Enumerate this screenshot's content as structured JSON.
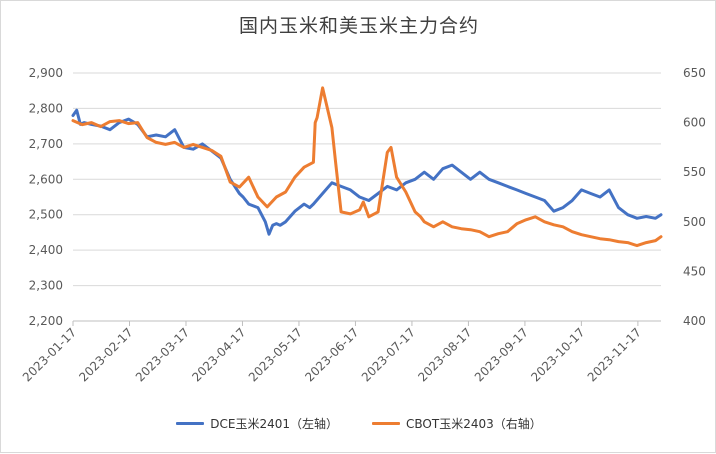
{
  "chart_data": {
    "type": "line",
    "title": "国内玉米和美玉米主力合约",
    "xlabel": "",
    "ylabel": "",
    "x_ticks": [
      "2023-01-17",
      "2023-02-17",
      "2023-03-17",
      "2023-04-17",
      "2023-05-17",
      "2023-06-17",
      "2023-07-17",
      "2023-08-17",
      "2023-09-17",
      "2023-10-17",
      "2023-11-17"
    ],
    "y_left": {
      "min": 2200,
      "max": 2900,
      "step": 100,
      "ticks": [
        "2,200",
        "2,300",
        "2,400",
        "2,500",
        "2,600",
        "2,700",
        "2,800",
        "2,900"
      ]
    },
    "y_right": {
      "min": 400,
      "max": 650,
      "step": 50,
      "ticks": [
        "400",
        "450",
        "500",
        "550",
        "600",
        "650"
      ]
    },
    "series": [
      {
        "name": "DCE玉米2401（左轴）",
        "axis": "left",
        "color": "#4472C4",
        "x_days": [
          0,
          2,
          4,
          6,
          10,
          15,
          20,
          25,
          30,
          35,
          40,
          45,
          50,
          55,
          60,
          65,
          70,
          75,
          80,
          85,
          90,
          92,
          95,
          100,
          104,
          106,
          108,
          110,
          112,
          115,
          120,
          125,
          128,
          130,
          135,
          140,
          145,
          150,
          155,
          160,
          165,
          170,
          175,
          180,
          185,
          190,
          195,
          200,
          205,
          210,
          215,
          220,
          225,
          230,
          235,
          240,
          245,
          250,
          255,
          260,
          265,
          270,
          275,
          280,
          285,
          290,
          295,
          300,
          305,
          310,
          315,
          318
        ],
        "values": [
          2780,
          2795,
          2755,
          2760,
          2755,
          2750,
          2740,
          2760,
          2770,
          2755,
          2720,
          2725,
          2720,
          2740,
          2690,
          2685,
          2700,
          2680,
          2660,
          2600,
          2560,
          2550,
          2530,
          2520,
          2480,
          2445,
          2470,
          2475,
          2470,
          2480,
          2510,
          2530,
          2520,
          2530,
          2560,
          2590,
          2580,
          2570,
          2550,
          2540,
          2560,
          2580,
          2570,
          2590,
          2600,
          2620,
          2600,
          2630,
          2640,
          2620,
          2600,
          2620,
          2600,
          2590,
          2580,
          2570,
          2560,
          2550,
          2540,
          2510,
          2520,
          2540,
          2570,
          2560,
          2550,
          2570,
          2520,
          2500,
          2490,
          2495,
          2490,
          2500
        ]
      },
      {
        "name": "CBOT玉米2403（右轴）",
        "axis": "right",
        "color": "#ED7D31",
        "x_days": [
          0,
          5,
          10,
          15,
          20,
          25,
          30,
          35,
          40,
          45,
          50,
          55,
          60,
          65,
          70,
          75,
          80,
          85,
          90,
          95,
          100,
          105,
          110,
          115,
          120,
          125,
          130,
          131,
          132,
          135,
          140,
          142,
          145,
          150,
          155,
          157,
          160,
          165,
          170,
          172,
          175,
          180,
          185,
          188,
          190,
          195,
          200,
          205,
          210,
          215,
          220,
          225,
          230,
          235,
          240,
          245,
          250,
          255,
          260,
          265,
          270,
          275,
          280,
          285,
          290,
          295,
          300,
          305,
          310,
          315,
          318
        ],
        "values": [
          602,
          598,
          600,
          596,
          601,
          602,
          599,
          600,
          585,
          580,
          578,
          580,
          575,
          578,
          575,
          572,
          566,
          540,
          535,
          545,
          525,
          515,
          525,
          530,
          545,
          555,
          560,
          600,
          605,
          635,
          595,
          560,
          510,
          508,
          512,
          520,
          505,
          510,
          570,
          575,
          545,
          530,
          510,
          505,
          500,
          495,
          500,
          495,
          493,
          492,
          490,
          485,
          488,
          490,
          498,
          502,
          505,
          500,
          497,
          495,
          490,
          487,
          485,
          483,
          482,
          480,
          479,
          476,
          479,
          481,
          485
        ]
      }
    ],
    "legend_position": "bottom"
  }
}
